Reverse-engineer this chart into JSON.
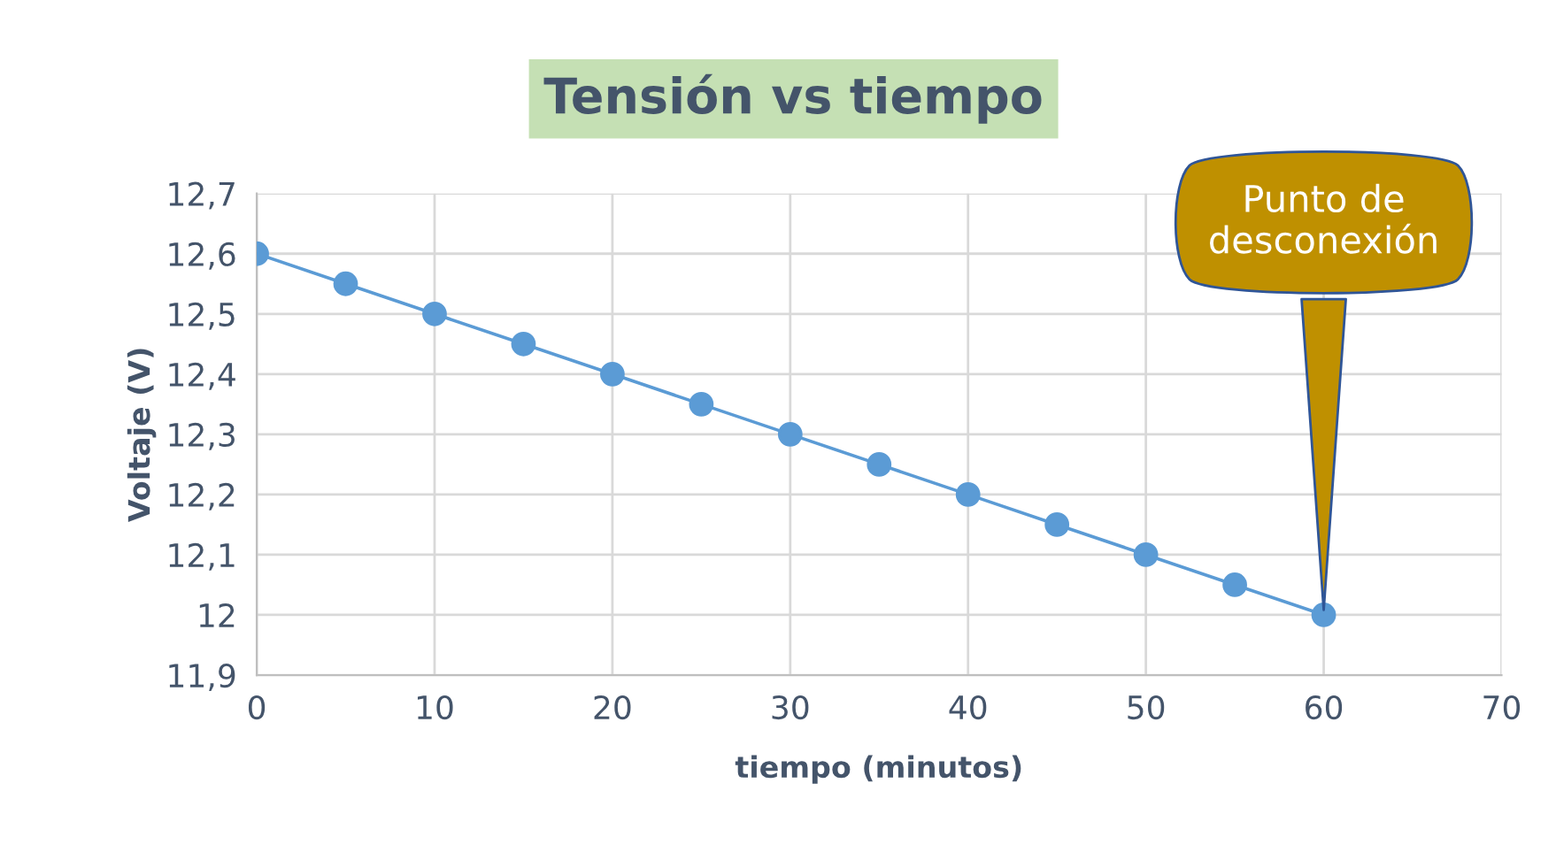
{
  "chart_data": {
    "type": "line",
    "title": "Tensión vs tiempo",
    "xlabel": "tiempo (minutos)",
    "ylabel": "Voltaje (V)",
    "x": [
      0,
      5,
      10,
      15,
      20,
      25,
      30,
      35,
      40,
      45,
      50,
      55,
      60
    ],
    "series": [
      {
        "color": "#5b9bd5",
        "values": [
          12.6,
          12.55,
          12.5,
          12.45,
          12.4,
          12.35,
          12.3,
          12.25,
          12.2,
          12.15,
          12.1,
          12.05,
          12.0
        ]
      }
    ],
    "xlim": [
      0,
      70
    ],
    "xticks": [
      0,
      10,
      20,
      30,
      40,
      50,
      60,
      70
    ],
    "ylim": [
      11.9,
      12.7
    ],
    "yticks": [
      {
        "value": 11.9,
        "label": "11,9"
      },
      12,
      {
        "value": 12.1,
        "label": "12,1"
      },
      {
        "value": 12.2,
        "label": "12,2"
      },
      {
        "value": 12.3,
        "label": "12,3"
      },
      {
        "value": 12.4,
        "label": "12,4"
      },
      {
        "value": 12.5,
        "label": "12,5"
      },
      {
        "value": 12.6,
        "label": "12,6"
      },
      {
        "value": 12.7,
        "label": "12,7"
      }
    ],
    "grid": true,
    "marker": "circle",
    "line_style": "solid",
    "legend": false,
    "annotations": [
      {
        "text": "Punto de\ndesconexión",
        "x": 60,
        "y": 12
      }
    ]
  }
}
